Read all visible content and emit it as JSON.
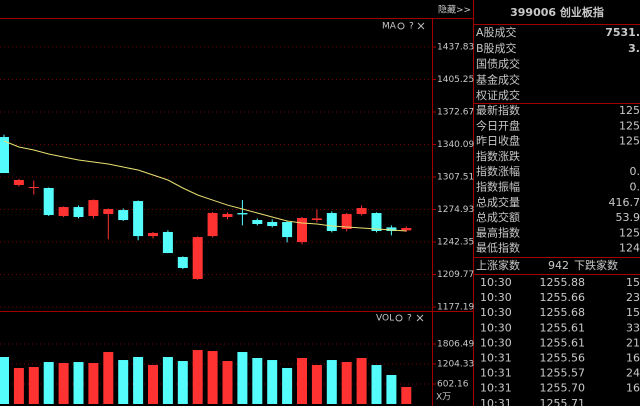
{
  "top_bar": {
    "hide_button": "隐藏>>"
  },
  "chart_data": [
    {
      "type": "candlestick",
      "label": "MA",
      "open": [
        1347.6,
        1299.5,
        1296.5,
        1296.5,
        1268.4,
        1277.4,
        1268.4,
        1270.4,
        1274.4,
        1283.4,
        1248.3,
        1252.4,
        1227.3,
        1205.3,
        1248.3,
        1267.4,
        1271.4,
        1264.4,
        1262.4,
        1262.4,
        1242.3,
        1264.4,
        1271.4,
        1255.4,
        1270.4,
        1271.4,
        1257,
        1254
      ],
      "high": [
        1350,
        1305.5,
        1304,
        1297,
        1278,
        1279,
        1285,
        1276,
        1276,
        1284,
        1252.4,
        1254,
        1228,
        1248,
        1272.4,
        1272,
        1284.4,
        1266,
        1265,
        1264,
        1267.4,
        1275,
        1273,
        1271.4,
        1279,
        1272,
        1259,
        1258
      ],
      "low": [
        1311.5,
        1298,
        1290,
        1268.4,
        1267.4,
        1266,
        1266,
        1245,
        1263.4,
        1244,
        1246,
        1231.3,
        1215.3,
        1204.5,
        1247,
        1265,
        1259,
        1259,
        1257,
        1242,
        1240,
        1262,
        1252,
        1253,
        1269,
        1252,
        1249,
        1252.5
      ],
      "close": [
        1311.5,
        1304.5,
        1297.5,
        1269.4,
        1277.4,
        1267.4,
        1284.4,
        1275.4,
        1264.4,
        1248.3,
        1251.4,
        1231.3,
        1216.3,
        1247.3,
        1271.4,
        1270.4,
        1270,
        1260.4,
        1258.4,
        1247.3,
        1266.4,
        1266,
        1253.4,
        1270.4,
        1276.4,
        1253.4,
        1253.4,
        1256.4
      ],
      "ma": [
        1343.6,
        1337.6,
        1334.6,
        1330.6,
        1327.6,
        1324.6,
        1322.5,
        1320.5,
        1317.5,
        1314.5,
        1309.5,
        1304.5,
        1296.5,
        1289.5,
        1284.4,
        1279.4,
        1275.4,
        1271.4,
        1267.4,
        1263.4,
        1261.4,
        1260.4,
        1258.4,
        1257.4,
        1256.4,
        1255.4,
        1254.4,
        1253.4
      ],
      "up_color": "#ff3232",
      "down_color": "#54fcfc",
      "ma_color": "#e8e070",
      "ylim": [
        1174.2,
        1466.9
      ],
      "yticks": [
        1177.19,
        1209.77,
        1242.35,
        1274.93,
        1307.51,
        1340.09,
        1372.67,
        1405.25,
        1437.83
      ],
      "grid": true
    },
    {
      "type": "bar",
      "label": "VOL",
      "values": [
        1415,
        1084,
        1114,
        1264,
        1234,
        1264,
        1234,
        1565,
        1324,
        1415,
        1174,
        1415,
        1294,
        1625,
        1595,
        1294,
        1565,
        1385,
        1324,
        1084,
        1385,
        1174,
        1324,
        1264,
        1385,
        1174,
        873,
        512
      ],
      "ylim": [
        0,
        2770
      ],
      "yticks": [
        602.16,
        1204.33,
        1806.49
      ],
      "unit_label": "X万",
      "grid": true
    }
  ],
  "panel": {
    "title": "399006 创业板指",
    "summary": [
      {
        "label": "A股成交",
        "value": "7531."
      },
      {
        "label": "B股成交",
        "value": "3."
      },
      {
        "label": "国债成交"
      },
      {
        "label": "基金成交"
      },
      {
        "label": "权证成交"
      }
    ],
    "stats": [
      {
        "label": "最新指数",
        "value": "125",
        "color": "#ff3232"
      },
      {
        "label": "今日开盘",
        "value": "125",
        "color": "#ff3232"
      },
      {
        "label": "昨日收盘",
        "value": "125",
        "color": "#ff3232"
      },
      {
        "label": "指数涨跌"
      },
      {
        "label": "指数涨幅",
        "value": "0.",
        "color": "#ff3232"
      },
      {
        "label": "指数振幅",
        "value": "0.",
        "color": "#e0e0e0"
      },
      {
        "label": "总成交量",
        "value": "416.7",
        "color": "#e0e0e0"
      },
      {
        "label": "总成交额",
        "value": "53.9",
        "color": "#e0e0e0"
      },
      {
        "label": "最高指数",
        "value": "125",
        "color": "#ff3232"
      },
      {
        "label": "最低指数",
        "value": "124",
        "color": "#00e600"
      }
    ],
    "breadth": {
      "up_label": "上涨家数",
      "up": "942",
      "down_label": "下跌家数"
    },
    "ticks": [
      [
        "10:30",
        "1255.88",
        "15"
      ],
      [
        "10:30",
        "1255.66",
        "23"
      ],
      [
        "10:30",
        "1255.68",
        "15"
      ],
      [
        "10:30",
        "1255.61",
        "33"
      ],
      [
        "10:30",
        "1255.61",
        "21"
      ],
      [
        "10:31",
        "1255.56",
        "16"
      ],
      [
        "10:31",
        "1255.57",
        "24"
      ],
      [
        "10:31",
        "1255.70",
        "16"
      ],
      [
        "10:31",
        "1255.71"
      ]
    ]
  }
}
